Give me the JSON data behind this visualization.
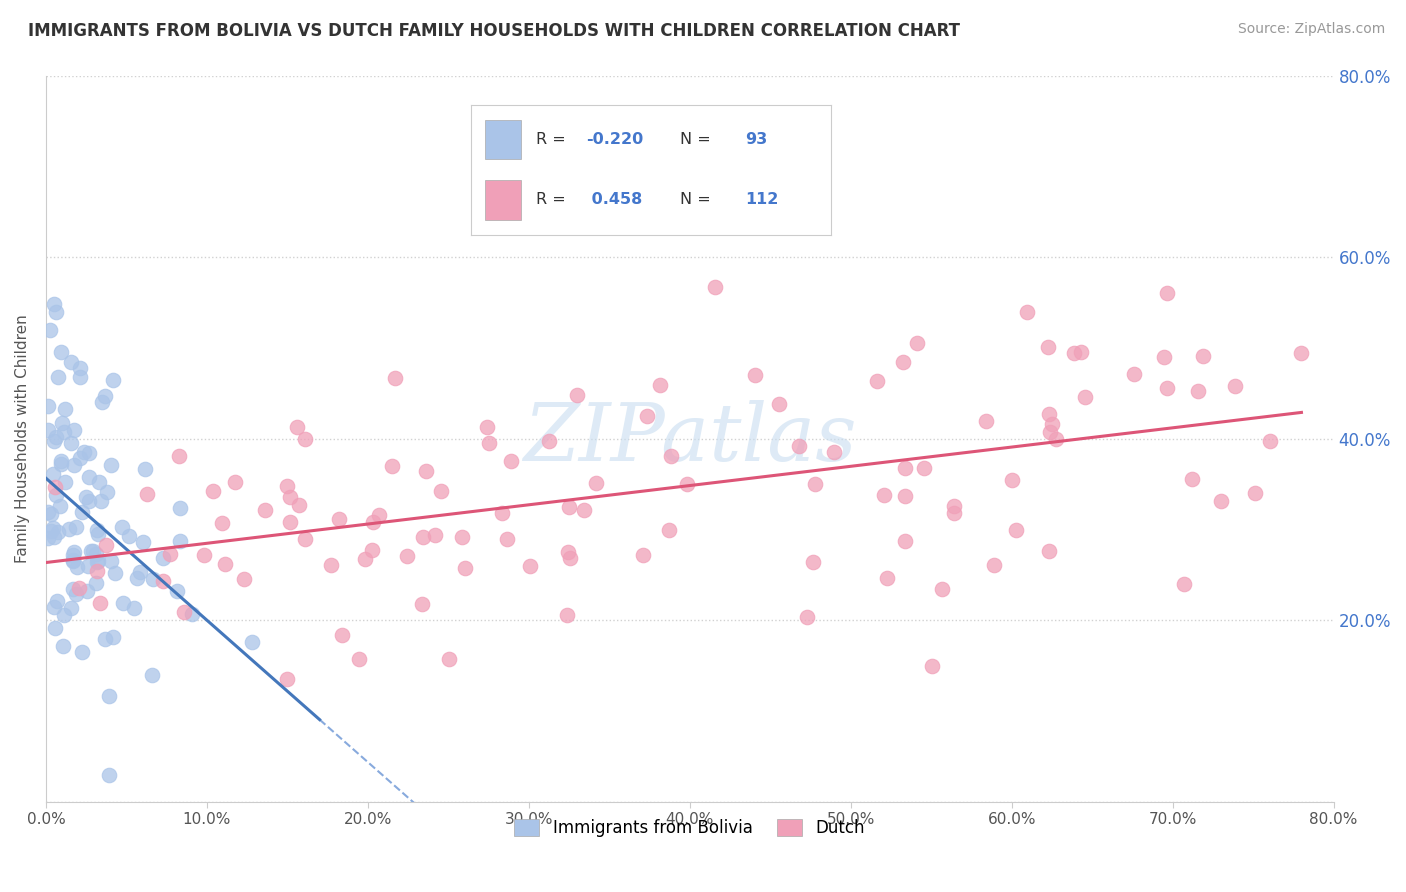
{
  "title": "IMMIGRANTS FROM BOLIVIA VS DUTCH FAMILY HOUSEHOLDS WITH CHILDREN CORRELATION CHART",
  "source": "Source: ZipAtlas.com",
  "ylabel": "Family Households with Children",
  "legend_label1": "Immigrants from Bolivia",
  "legend_label2": "Dutch",
  "R1": -0.22,
  "N1": 93,
  "R2": 0.458,
  "N2": 112,
  "color1": "#aac4e8",
  "color2": "#f0a0b8",
  "line1_color": "#4477bb",
  "line2_color": "#dd5577",
  "dash_color": "#88aadd",
  "watermark_color": "#c8ddf0",
  "xlim": [
    0.0,
    0.8
  ],
  "ylim": [
    0.0,
    0.8
  ],
  "x_ticks": [
    0.0,
    0.1,
    0.2,
    0.3,
    0.4,
    0.5,
    0.6,
    0.7,
    0.8
  ],
  "y_ticks": [
    0.0,
    0.2,
    0.4,
    0.6,
    0.8
  ],
  "right_y_ticks": [
    0.2,
    0.4,
    0.6,
    0.8
  ],
  "legend_R_color": "#4477cc",
  "legend_N_color": "#4477cc",
  "title_color": "#333333",
  "source_color": "#999999",
  "ylabel_color": "#555555",
  "tick_color": "#4477cc"
}
